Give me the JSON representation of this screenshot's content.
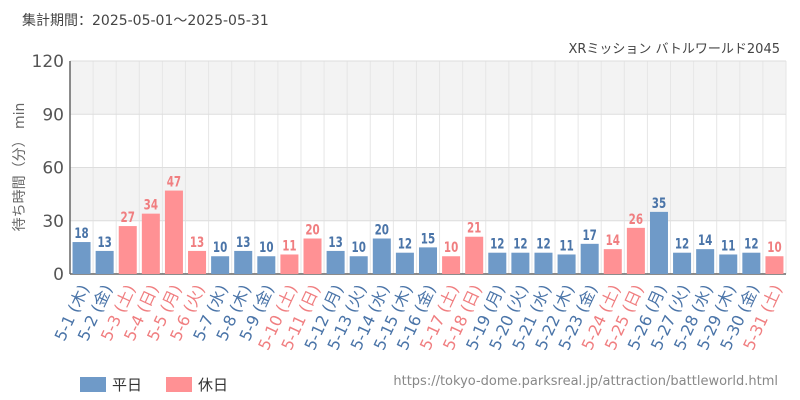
{
  "header": {
    "period_label": "集計期間：2025-05-01～2025-05-31"
  },
  "chart_data": {
    "type": "bar",
    "title": "XRミッション バトルワールド2045",
    "ylabel": "待ち時間（分） min",
    "xlabel": "",
    "ylim": [
      0,
      120
    ],
    "yticks": [
      0,
      30,
      60,
      90,
      120
    ],
    "categories": [
      "5-1 (木)",
      "5-2 (金)",
      "5-3 (土)",
      "5-4 (日)",
      "5-5 (月)",
      "5-6 (火)",
      "5-7 (水)",
      "5-8 (木)",
      "5-9 (金)",
      "5-10 (土)",
      "5-11 (日)",
      "5-12 (月)",
      "5-13 (火)",
      "5-14 (水)",
      "5-15 (木)",
      "5-16 (金)",
      "5-17 (土)",
      "5-18 (日)",
      "5-19 (月)",
      "5-20 (火)",
      "5-21 (水)",
      "5-22 (木)",
      "5-23 (金)",
      "5-24 (土)",
      "5-25 (日)",
      "5-26 (月)",
      "5-27 (火)",
      "5-28 (水)",
      "5-29 (木)",
      "5-30 (金)",
      "5-31 (土)"
    ],
    "values": [
      18,
      13,
      27,
      34,
      47,
      13,
      10,
      13,
      10,
      11,
      20,
      13,
      10,
      20,
      12,
      15,
      10,
      21,
      12,
      12,
      12,
      11,
      17,
      14,
      26,
      35,
      12,
      14,
      11,
      12,
      10
    ],
    "day_type": [
      "平日",
      "平日",
      "休日",
      "休日",
      "休日",
      "休日",
      "平日",
      "平日",
      "平日",
      "休日",
      "休日",
      "平日",
      "平日",
      "平日",
      "平日",
      "平日",
      "休日",
      "休日",
      "平日",
      "平日",
      "平日",
      "平日",
      "平日",
      "休日",
      "休日",
      "平日",
      "平日",
      "平日",
      "平日",
      "平日",
      "休日"
    ],
    "legend": [
      {
        "name": "平日",
        "color": "#6f9ac8"
      },
      {
        "name": "休日",
        "color": "#ff9194"
      }
    ],
    "label_colors": {
      "平日": "#4a74a8",
      "休日": "#f07e80"
    },
    "grid": true,
    "legend_position": "bottom-left"
  },
  "footer": {
    "source_url": "https://tokyo-dome.parksreal.jp/attraction/battleworld.html"
  }
}
